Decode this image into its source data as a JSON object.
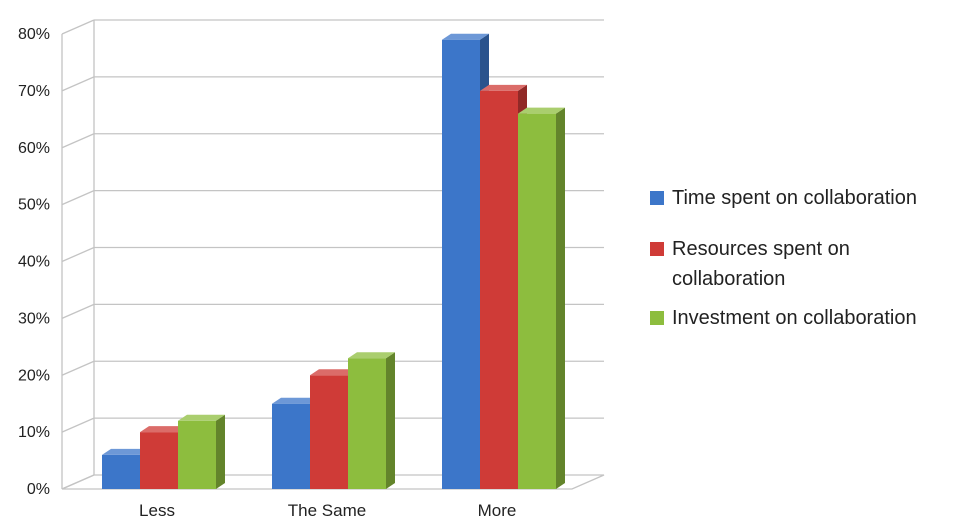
{
  "chart_data": {
    "type": "bar",
    "categories": [
      "Less",
      "The Same",
      "More"
    ],
    "yticks": [
      "0%",
      "10%",
      "20%",
      "30%",
      "40%",
      "50%",
      "60%",
      "70%",
      "80%"
    ],
    "ylim": [
      0,
      80
    ],
    "grid": true,
    "legend_position": "right",
    "series": [
      {
        "name": "Time spent on collaboration",
        "values": [
          6,
          15,
          79
        ],
        "color": "#3c76c9"
      },
      {
        "name": "Resources spent on collaboration",
        "values": [
          10,
          20,
          70
        ],
        "color": "#cf3b37"
      },
      {
        "name": "Investment on collaboration",
        "values": [
          12,
          23,
          66
        ],
        "color": "#8dbd3e"
      }
    ]
  }
}
